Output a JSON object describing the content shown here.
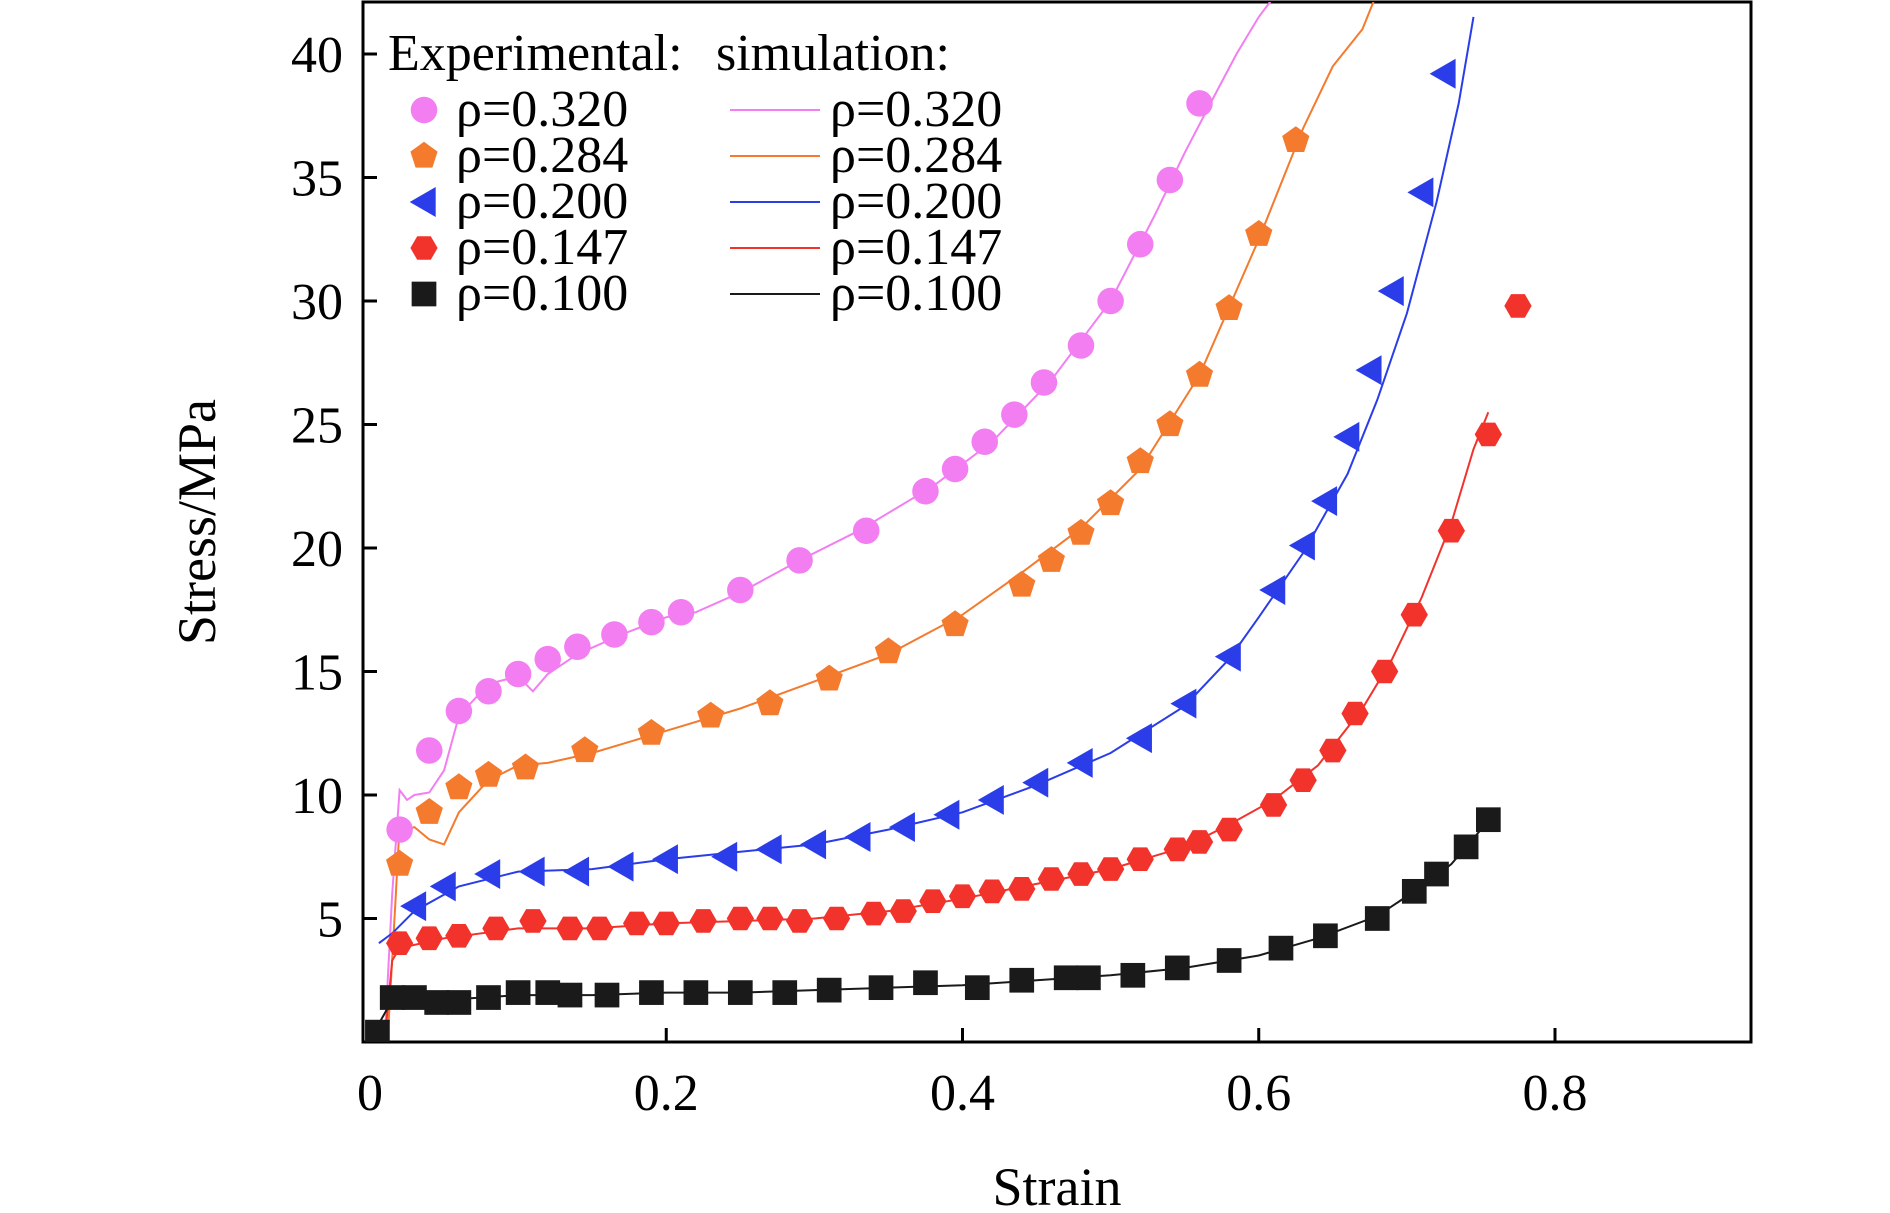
{
  "chart_data": {
    "type": "scatter",
    "xlabel": "Strain",
    "ylabel": "Stress/MPa",
    "xlim": [
      0,
      0.9
    ],
    "ylim": [
      0,
      40
    ],
    "x_ticks": [
      0,
      0.2,
      0.4,
      0.6,
      0.8
    ],
    "x_tick_labels": [
      "0",
      "0.2",
      "0.4",
      "0.6",
      "0.8"
    ],
    "y_ticks": [
      5,
      10,
      15,
      20,
      25,
      30,
      35,
      40
    ],
    "y_tick_labels": [
      "5",
      "10",
      "15",
      "20",
      "25",
      "30",
      "35",
      "40"
    ],
    "legend": {
      "position": "top-left",
      "header_experimental": "Experimental:",
      "header_simulation": "simulation:"
    },
    "series": [
      {
        "label": "ρ=0.320",
        "marker": "circle",
        "color": "#f27ef2",
        "experimental": [
          [
            0.02,
            8.6
          ],
          [
            0.04,
            11.8
          ],
          [
            0.06,
            13.4
          ],
          [
            0.08,
            14.2
          ],
          [
            0.1,
            14.9
          ],
          [
            0.12,
            15.5
          ],
          [
            0.14,
            16.0
          ],
          [
            0.165,
            16.5
          ],
          [
            0.19,
            17.0
          ],
          [
            0.21,
            17.4
          ],
          [
            0.25,
            18.3
          ],
          [
            0.29,
            19.5
          ],
          [
            0.335,
            20.7
          ],
          [
            0.375,
            22.3
          ],
          [
            0.395,
            23.2
          ],
          [
            0.415,
            24.3
          ],
          [
            0.435,
            25.4
          ],
          [
            0.455,
            26.7
          ],
          [
            0.48,
            28.2
          ],
          [
            0.5,
            30.0
          ],
          [
            0.52,
            32.3
          ],
          [
            0.54,
            34.9
          ],
          [
            0.56,
            38.0
          ]
        ],
        "simulation": [
          [
            0.01,
            0.2
          ],
          [
            0.015,
            6.0
          ],
          [
            0.02,
            10.2
          ],
          [
            0.025,
            9.8
          ],
          [
            0.03,
            10.0
          ],
          [
            0.04,
            10.1
          ],
          [
            0.05,
            11.0
          ],
          [
            0.06,
            13.2
          ],
          [
            0.08,
            14.5
          ],
          [
            0.1,
            14.8
          ],
          [
            0.11,
            14.2
          ],
          [
            0.12,
            14.9
          ],
          [
            0.14,
            15.7
          ],
          [
            0.17,
            16.5
          ],
          [
            0.2,
            17.2
          ],
          [
            0.22,
            17.4
          ],
          [
            0.25,
            18.2
          ],
          [
            0.29,
            19.5
          ],
          [
            0.33,
            20.7
          ],
          [
            0.38,
            22.5
          ],
          [
            0.42,
            24.3
          ],
          [
            0.46,
            26.8
          ],
          [
            0.5,
            30.0
          ],
          [
            0.53,
            33.5
          ],
          [
            0.55,
            36.0
          ],
          [
            0.57,
            38.3
          ],
          [
            0.585,
            40.0
          ],
          [
            0.6,
            41.5
          ],
          [
            0.61,
            42.3
          ]
        ]
      },
      {
        "label": "ρ=0.284",
        "marker": "pentagon",
        "color": "#f47a2e",
        "experimental": [
          [
            0.02,
            7.2
          ],
          [
            0.04,
            9.3
          ],
          [
            0.06,
            10.3
          ],
          [
            0.08,
            10.8
          ],
          [
            0.105,
            11.1
          ],
          [
            0.145,
            11.8
          ],
          [
            0.19,
            12.5
          ],
          [
            0.23,
            13.2
          ],
          [
            0.27,
            13.7
          ],
          [
            0.31,
            14.7
          ],
          [
            0.35,
            15.8
          ],
          [
            0.395,
            16.9
          ],
          [
            0.44,
            18.5
          ],
          [
            0.46,
            19.5
          ],
          [
            0.48,
            20.6
          ],
          [
            0.5,
            21.8
          ],
          [
            0.52,
            23.5
          ],
          [
            0.54,
            25.0
          ],
          [
            0.56,
            27.0
          ],
          [
            0.58,
            29.7
          ],
          [
            0.6,
            32.7
          ],
          [
            0.625,
            36.5
          ]
        ],
        "simulation": [
          [
            0.012,
            0.2
          ],
          [
            0.017,
            5.5
          ],
          [
            0.02,
            8.8
          ],
          [
            0.025,
            8.6
          ],
          [
            0.03,
            8.7
          ],
          [
            0.04,
            8.2
          ],
          [
            0.05,
            8.0
          ],
          [
            0.06,
            9.3
          ],
          [
            0.08,
            10.6
          ],
          [
            0.1,
            11.2
          ],
          [
            0.12,
            11.3
          ],
          [
            0.15,
            11.7
          ],
          [
            0.2,
            12.6
          ],
          [
            0.25,
            13.5
          ],
          [
            0.3,
            14.6
          ],
          [
            0.35,
            15.7
          ],
          [
            0.4,
            17.3
          ],
          [
            0.44,
            19.0
          ],
          [
            0.48,
            20.8
          ],
          [
            0.52,
            23.2
          ],
          [
            0.56,
            27.0
          ],
          [
            0.6,
            32.5
          ],
          [
            0.63,
            37.0
          ],
          [
            0.65,
            39.5
          ],
          [
            0.67,
            41.0
          ],
          [
            0.68,
            42.5
          ]
        ]
      },
      {
        "label": "ρ=0.200",
        "marker": "triangle-left",
        "color": "#2a3de8",
        "experimental": [
          [
            0.03,
            5.5
          ],
          [
            0.05,
            6.3
          ],
          [
            0.08,
            6.8
          ],
          [
            0.11,
            6.9
          ],
          [
            0.14,
            6.9
          ],
          [
            0.17,
            7.1
          ],
          [
            0.2,
            7.4
          ],
          [
            0.24,
            7.5
          ],
          [
            0.27,
            7.8
          ],
          [
            0.3,
            8.0
          ],
          [
            0.33,
            8.3
          ],
          [
            0.36,
            8.7
          ],
          [
            0.39,
            9.2
          ],
          [
            0.42,
            9.8
          ],
          [
            0.45,
            10.5
          ],
          [
            0.48,
            11.3
          ],
          [
            0.52,
            12.3
          ],
          [
            0.55,
            13.7
          ],
          [
            0.58,
            15.6
          ],
          [
            0.61,
            18.3
          ],
          [
            0.63,
            20.1
          ],
          [
            0.645,
            21.9
          ],
          [
            0.66,
            24.5
          ],
          [
            0.675,
            27.2
          ],
          [
            0.69,
            30.4
          ],
          [
            0.71,
            34.4
          ],
          [
            0.725,
            39.2
          ]
        ],
        "simulation": [
          [
            0.006,
            4.0
          ],
          [
            0.015,
            4.4
          ],
          [
            0.03,
            5.3
          ],
          [
            0.06,
            6.3
          ],
          [
            0.1,
            6.9
          ],
          [
            0.15,
            7.0
          ],
          [
            0.2,
            7.4
          ],
          [
            0.25,
            7.7
          ],
          [
            0.3,
            8.0
          ],
          [
            0.35,
            8.6
          ],
          [
            0.4,
            9.3
          ],
          [
            0.45,
            10.4
          ],
          [
            0.5,
            11.7
          ],
          [
            0.55,
            13.6
          ],
          [
            0.58,
            15.5
          ],
          [
            0.6,
            17.2
          ],
          [
            0.63,
            19.8
          ],
          [
            0.66,
            23.0
          ],
          [
            0.68,
            26.0
          ],
          [
            0.7,
            29.5
          ],
          [
            0.72,
            34.0
          ],
          [
            0.735,
            38.0
          ],
          [
            0.745,
            41.5
          ]
        ]
      },
      {
        "label": "ρ=0.147",
        "marker": "hexagon",
        "color": "#f2332c",
        "experimental": [
          [
            0.02,
            4.0
          ],
          [
            0.04,
            4.2
          ],
          [
            0.06,
            4.3
          ],
          [
            0.085,
            4.6
          ],
          [
            0.11,
            4.9
          ],
          [
            0.135,
            4.6
          ],
          [
            0.155,
            4.6
          ],
          [
            0.18,
            4.8
          ],
          [
            0.2,
            4.8
          ],
          [
            0.225,
            4.9
          ],
          [
            0.25,
            5.0
          ],
          [
            0.27,
            5.0
          ],
          [
            0.29,
            4.9
          ],
          [
            0.315,
            5.0
          ],
          [
            0.34,
            5.2
          ],
          [
            0.36,
            5.3
          ],
          [
            0.38,
            5.7
          ],
          [
            0.4,
            5.9
          ],
          [
            0.42,
            6.1
          ],
          [
            0.44,
            6.2
          ],
          [
            0.46,
            6.6
          ],
          [
            0.48,
            6.8
          ],
          [
            0.5,
            7.0
          ],
          [
            0.52,
            7.4
          ],
          [
            0.545,
            7.8
          ],
          [
            0.56,
            8.1
          ],
          [
            0.58,
            8.6
          ],
          [
            0.61,
            9.6
          ],
          [
            0.63,
            10.6
          ],
          [
            0.65,
            11.8
          ],
          [
            0.665,
            13.3
          ],
          [
            0.685,
            15.0
          ],
          [
            0.705,
            17.3
          ],
          [
            0.73,
            20.7
          ],
          [
            0.755,
            24.6
          ],
          [
            0.775,
            29.8
          ]
        ],
        "simulation": [
          [
            0.01,
            0.1
          ],
          [
            0.015,
            3.3
          ],
          [
            0.02,
            3.8
          ],
          [
            0.05,
            4.2
          ],
          [
            0.1,
            4.6
          ],
          [
            0.15,
            4.6
          ],
          [
            0.2,
            4.8
          ],
          [
            0.25,
            4.9
          ],
          [
            0.3,
            5.0
          ],
          [
            0.35,
            5.3
          ],
          [
            0.4,
            5.8
          ],
          [
            0.45,
            6.4
          ],
          [
            0.5,
            7.0
          ],
          [
            0.55,
            7.9
          ],
          [
            0.58,
            8.8
          ],
          [
            0.61,
            9.8
          ],
          [
            0.64,
            11.2
          ],
          [
            0.67,
            13.5
          ],
          [
            0.69,
            15.5
          ],
          [
            0.71,
            18.0
          ],
          [
            0.73,
            21.0
          ],
          [
            0.745,
            24.0
          ],
          [
            0.755,
            25.5
          ]
        ]
      },
      {
        "label": "ρ=0.100",
        "marker": "square",
        "color": "#1a1a1a",
        "experimental": [
          [
            0.005,
            0.4
          ],
          [
            0.015,
            1.8
          ],
          [
            0.03,
            1.8
          ],
          [
            0.045,
            1.6
          ],
          [
            0.06,
            1.6
          ],
          [
            0.08,
            1.8
          ],
          [
            0.1,
            2.0
          ],
          [
            0.12,
            2.0
          ],
          [
            0.135,
            1.9
          ],
          [
            0.16,
            1.9
          ],
          [
            0.19,
            2.0
          ],
          [
            0.22,
            2.0
          ],
          [
            0.25,
            2.0
          ],
          [
            0.28,
            2.0
          ],
          [
            0.31,
            2.1
          ],
          [
            0.345,
            2.2
          ],
          [
            0.375,
            2.4
          ],
          [
            0.41,
            2.2
          ],
          [
            0.44,
            2.5
          ],
          [
            0.47,
            2.6
          ],
          [
            0.485,
            2.6
          ],
          [
            0.515,
            2.7
          ],
          [
            0.545,
            3.0
          ],
          [
            0.58,
            3.3
          ],
          [
            0.615,
            3.8
          ],
          [
            0.645,
            4.3
          ],
          [
            0.68,
            5.0
          ],
          [
            0.705,
            6.1
          ],
          [
            0.72,
            6.8
          ],
          [
            0.74,
            7.9
          ],
          [
            0.755,
            9.0
          ]
        ],
        "simulation": [
          [
            0.0,
            0.1
          ],
          [
            0.015,
            1.7
          ],
          [
            0.05,
            1.7
          ],
          [
            0.1,
            1.9
          ],
          [
            0.15,
            1.9
          ],
          [
            0.2,
            2.0
          ],
          [
            0.25,
            2.0
          ],
          [
            0.3,
            2.1
          ],
          [
            0.35,
            2.2
          ],
          [
            0.4,
            2.3
          ],
          [
            0.45,
            2.5
          ],
          [
            0.5,
            2.7
          ],
          [
            0.55,
            3.0
          ],
          [
            0.6,
            3.5
          ],
          [
            0.64,
            4.2
          ],
          [
            0.68,
            5.1
          ],
          [
            0.71,
            6.3
          ],
          [
            0.73,
            7.2
          ],
          [
            0.75,
            8.6
          ]
        ]
      }
    ]
  }
}
